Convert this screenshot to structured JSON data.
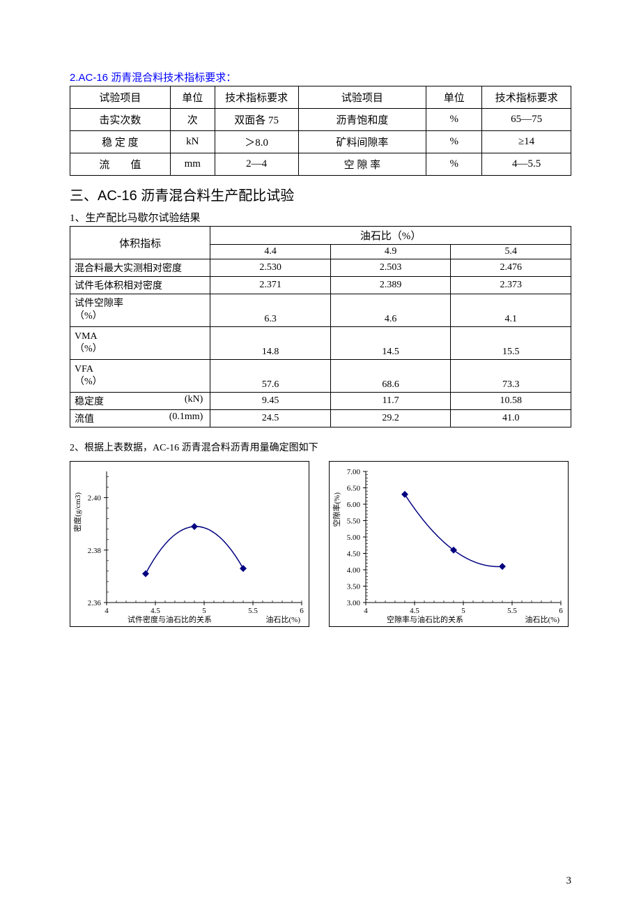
{
  "section1": {
    "title": "2.AC-16 沥青混合料技术指标要求：",
    "headers": {
      "test": "试验项目",
      "unit": "单位",
      "req": "技术指标要求",
      "test2": "试验项目",
      "unit2": "单位",
      "req2": "技术指标要求"
    },
    "rows": [
      {
        "c1": "击实次数",
        "c2": "次",
        "c3": "双面各 75",
        "c4": "沥青饱和度",
        "c5": "%",
        "c6": "65—75"
      },
      {
        "c1": "稳 定 度",
        "c2": "kN",
        "c3": "＞8.0",
        "c4": "矿料间隙率",
        "c5": "%",
        "c6": "≥14"
      },
      {
        "c1": "流　　值",
        "c2": "mm",
        "c3": "2—4",
        "c4": "空 隙 率",
        "c5": "%",
        "c6": "4—5.5"
      }
    ]
  },
  "section2": {
    "main": "三、AC-16 沥青混合料生产配比试验",
    "sub": "1、生产配比马歇尔试验结果",
    "vol_label": "体积指标",
    "ratio_label": "油石比（%）",
    "ratios": [
      "4.4",
      "4.9",
      "5.4"
    ],
    "rows": [
      {
        "label": "混合料最大实测相对密度",
        "v": [
          "2.530",
          "2.503",
          "2.476"
        ]
      },
      {
        "label": "试件毛体积相对密度",
        "v": [
          "2.371",
          "2.389",
          "2.373"
        ]
      },
      {
        "label": "试件空隙率",
        "pct": "（%）",
        "v": [
          "6.3",
          "4.6",
          "4.1"
        ]
      },
      {
        "label": "VMA",
        "pct": "（%）",
        "v": [
          "14.8",
          "14.5",
          "15.5"
        ]
      },
      {
        "label": "VFA",
        "pct": "（%）",
        "v": [
          "57.6",
          "68.6",
          "73.3"
        ]
      },
      {
        "label": "稳定度",
        "unit": "(kN)",
        "v": [
          "9.45",
          "11.7",
          "10.58"
        ]
      },
      {
        "label": "流值",
        "unit": "(0.1mm)",
        "v": [
          "24.5",
          "29.2",
          "41.0"
        ]
      }
    ]
  },
  "note": "2、根据上表数据，AC-16 沥青混合料沥青用量确定图如下",
  "chart1": {
    "ylabel": "密度(g/cm3)",
    "xlabel": "油石比(%)",
    "caption": "试件密度与油石比的关系",
    "ylim": [
      2.36,
      2.41
    ],
    "yticks": [
      2.36,
      2.38,
      2.4
    ],
    "xlim": [
      4,
      6
    ],
    "xticks": [
      4,
      4.5,
      5,
      5.5,
      6
    ],
    "points": [
      {
        "x": 4.4,
        "y": 2.371
      },
      {
        "x": 4.9,
        "y": 2.389
      },
      {
        "x": 5.4,
        "y": 2.373
      }
    ],
    "line_color": "#000080",
    "marker_color": "#000080",
    "marker_size": 5,
    "background_color": "#ffffff",
    "axis_color": "#000000",
    "tick_fontsize": 11
  },
  "chart2": {
    "ylabel": "空隙率(%)",
    "xlabel": "油石比(%)",
    "caption": "空隙率与油石比的关系",
    "ylim": [
      3.0,
      7.0
    ],
    "yticks": [
      3.0,
      3.5,
      4.0,
      4.5,
      5.0,
      5.5,
      6.0,
      6.5,
      7.0
    ],
    "xlim": [
      4,
      6
    ],
    "xticks": [
      4,
      4.5,
      5,
      5.5,
      6
    ],
    "points": [
      {
        "x": 4.4,
        "y": 6.3
      },
      {
        "x": 4.9,
        "y": 4.6
      },
      {
        "x": 5.4,
        "y": 4.1
      }
    ],
    "line_color": "#000080",
    "marker_color": "#000080",
    "marker_size": 5,
    "background_color": "#ffffff",
    "axis_color": "#000000",
    "tick_fontsize": 11
  },
  "page_number": "3"
}
